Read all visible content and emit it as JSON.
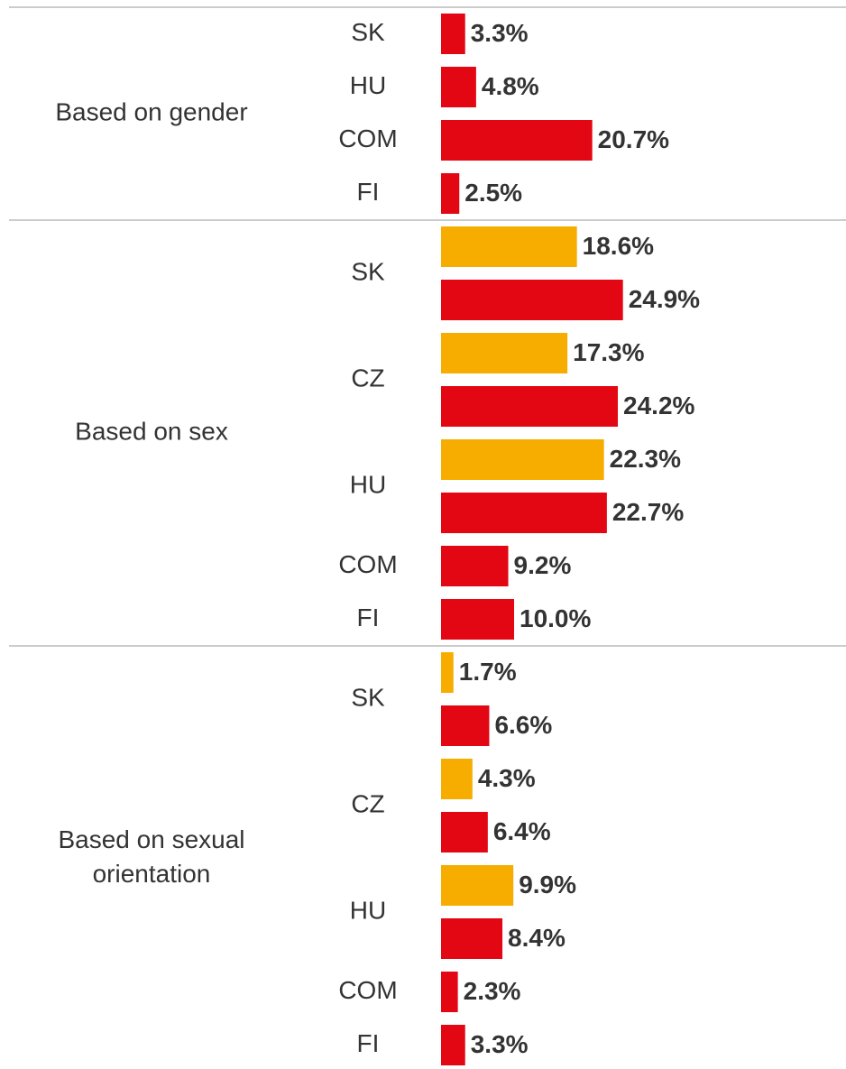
{
  "chart_data": {
    "type": "bar",
    "orientation": "horizontal",
    "groups": [
      {
        "label": "Based on gender",
        "rows": [
          {
            "category": "SK",
            "values": [
              3.3
            ],
            "value_labels": [
              "3.3%"
            ],
            "colors": [
              "#e30613"
            ]
          },
          {
            "category": "HU",
            "values": [
              4.8
            ],
            "value_labels": [
              "4.8%"
            ],
            "colors": [
              "#e30613"
            ]
          },
          {
            "category": "COM",
            "values": [
              20.7
            ],
            "value_labels": [
              "20.7%"
            ],
            "colors": [
              "#e30613"
            ]
          },
          {
            "category": "FI",
            "values": [
              2.5
            ],
            "value_labels": [
              "2.5%"
            ],
            "colors": [
              "#e30613"
            ]
          }
        ]
      },
      {
        "label": "Based on sex",
        "rows": [
          {
            "category": "SK",
            "values": [
              18.6,
              24.9
            ],
            "value_labels": [
              "18.6%",
              "24.9%"
            ],
            "colors": [
              "#f7ac00",
              "#e30613"
            ]
          },
          {
            "category": "CZ",
            "values": [
              17.3,
              24.2
            ],
            "value_labels": [
              "17.3%",
              "24.2%"
            ],
            "colors": [
              "#f7ac00",
              "#e30613"
            ]
          },
          {
            "category": "HU",
            "values": [
              22.3,
              22.7
            ],
            "value_labels": [
              "22.3%",
              "22.7%"
            ],
            "colors": [
              "#f7ac00",
              "#e30613"
            ]
          },
          {
            "category": "COM",
            "values": [
              9.2
            ],
            "value_labels": [
              "9.2%"
            ],
            "colors": [
              "#e30613"
            ]
          },
          {
            "category": "FI",
            "values": [
              10.0
            ],
            "value_labels": [
              "10.0%"
            ],
            "colors": [
              "#e30613"
            ]
          }
        ]
      },
      {
        "label": "Based on sexual orientation",
        "rows": [
          {
            "category": "SK",
            "values": [
              1.7,
              6.6
            ],
            "value_labels": [
              "1.7%",
              "6.6%"
            ],
            "colors": [
              "#f7ac00",
              "#e30613"
            ]
          },
          {
            "category": "CZ",
            "values": [
              4.3,
              6.4
            ],
            "value_labels": [
              "4.3%",
              "6.4%"
            ],
            "colors": [
              "#f7ac00",
              "#e30613"
            ]
          },
          {
            "category": "HU",
            "values": [
              9.9,
              8.4
            ],
            "value_labels": [
              "9.9%",
              "8.4%"
            ],
            "colors": [
              "#f7ac00",
              "#e30613"
            ]
          },
          {
            "category": "COM",
            "values": [
              2.3
            ],
            "value_labels": [
              "2.3%"
            ],
            "colors": [
              "#e30613"
            ]
          },
          {
            "category": "FI",
            "values": [
              3.3
            ],
            "value_labels": [
              "3.3%"
            ],
            "colors": [
              "#e30613"
            ]
          }
        ]
      }
    ]
  }
}
